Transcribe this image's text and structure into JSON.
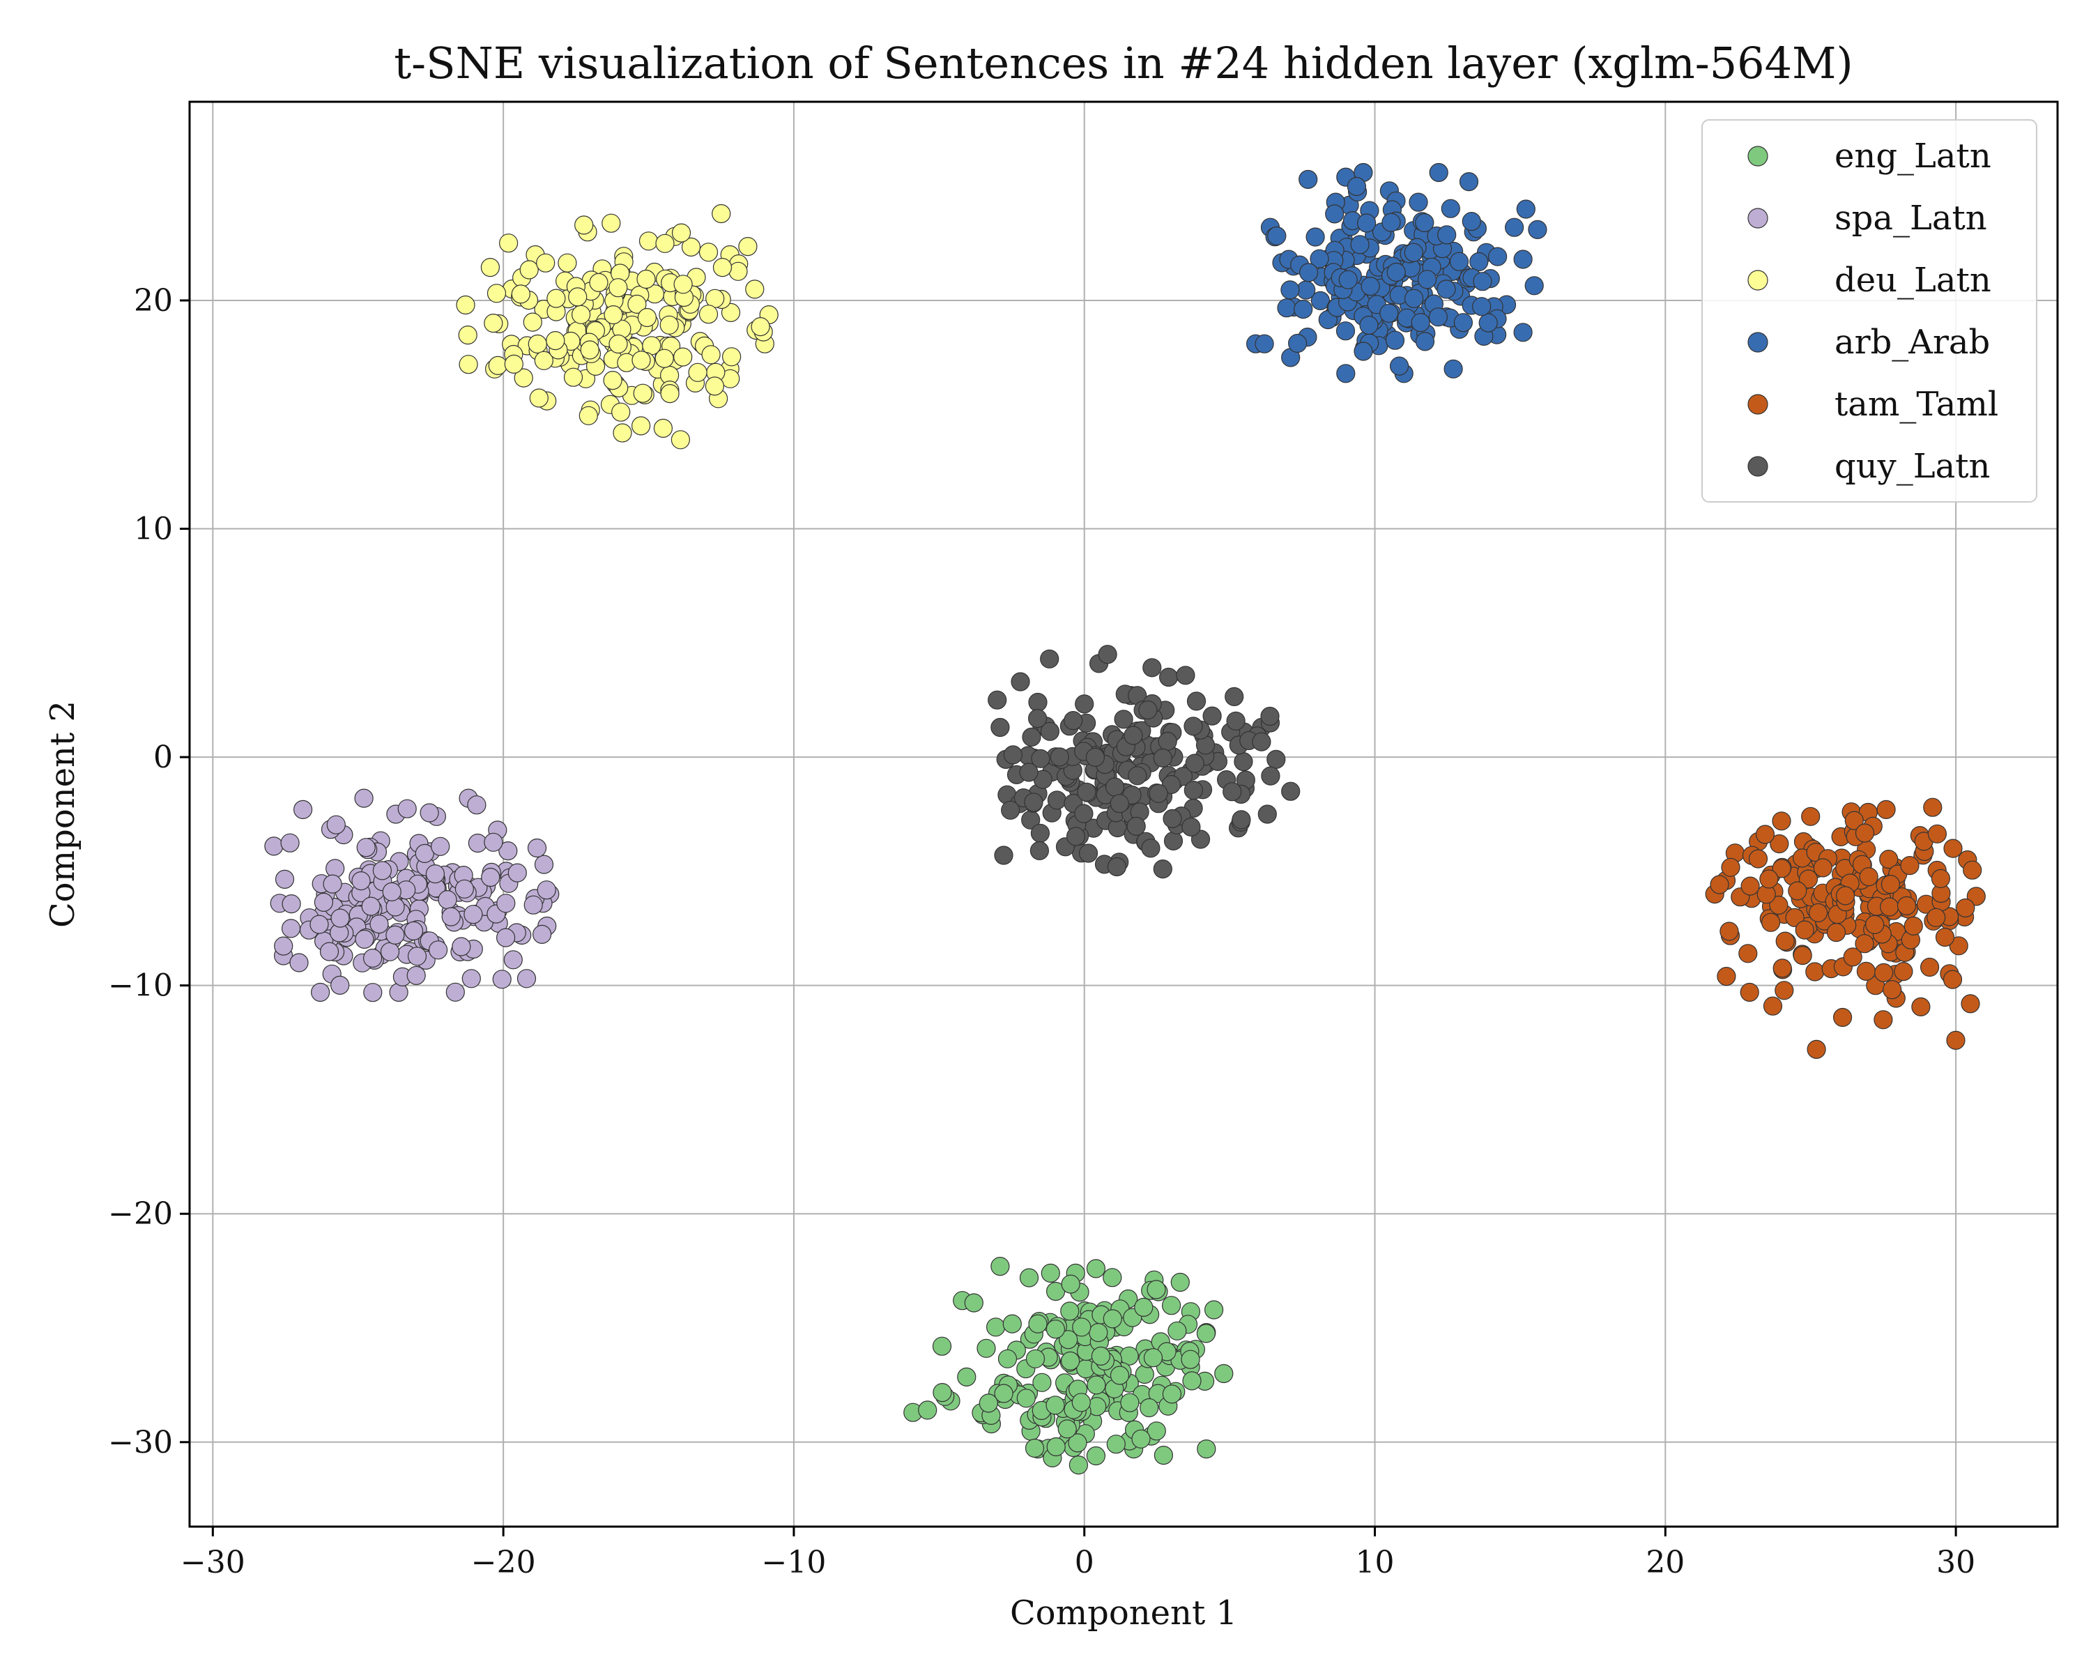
{
  "chart_data": {
    "type": "scatter",
    "title": "t-SNE visualization of Sentences in #24 hidden layer (xglm-564M)",
    "xlabel": "Component 1",
    "ylabel": "Component 2",
    "xlim": [
      -30.8,
      33.5
    ],
    "ylim": [
      -33.7,
      28.7
    ],
    "xticks": [
      -30,
      -20,
      -10,
      0,
      10,
      20,
      30
    ],
    "yticks": [
      -30,
      -20,
      -10,
      0,
      10,
      20
    ],
    "xtick_labels": [
      "−30",
      "−20",
      "−10",
      "0",
      "10",
      "20",
      "30"
    ],
    "ytick_labels": [
      "−30",
      "−20",
      "−10",
      "0",
      "10",
      "20"
    ],
    "grid": true,
    "legend_position": "top-right",
    "series": [
      {
        "name": "eng_Latn",
        "color": "#7fc97f",
        "center": [
          0.6,
          -26.6
        ],
        "spread": [
          2.3,
          1.9
        ],
        "count": 200,
        "bounds": [
          -5.9,
          4.8,
          -31.0,
          -22.3
        ],
        "points": [
          [
            -5.9,
            -28.7
          ],
          [
            -5.4,
            -28.6
          ],
          [
            -4.6,
            -28.2
          ],
          [
            -4.8,
            -28.0
          ],
          [
            -4.9,
            -25.8
          ],
          [
            -4.2,
            -23.8
          ],
          [
            -3.8,
            -23.9
          ],
          [
            -2.9,
            -22.3
          ],
          [
            -1.9,
            -22.8
          ],
          [
            -0.3,
            -22.6
          ],
          [
            0.4,
            -22.4
          ],
          [
            2.4,
            -22.9
          ],
          [
            3.3,
            -23.0
          ],
          [
            4.2,
            -25.2
          ],
          [
            4.2,
            -30.3
          ],
          [
            1.7,
            -30.3
          ],
          [
            0.4,
            -30.6
          ],
          [
            -0.2,
            -31.0
          ],
          [
            -1.6,
            -30.3
          ],
          [
            -3.2,
            -29.2
          ],
          [
            4.8,
            -27.0
          ],
          [
            -3.5,
            -28.8
          ]
        ]
      },
      {
        "name": "spa_Latn",
        "color": "#beaed4",
        "center": [
          -23.3,
          -6.5
        ],
        "spread": [
          2.6,
          1.9
        ],
        "count": 200,
        "bounds": [
          -27.9,
          -18.4,
          -10.4,
          -1.8
        ],
        "points": [
          [
            -27.9,
            -3.9
          ],
          [
            -27.7,
            -6.4
          ],
          [
            -26.9,
            -2.3
          ],
          [
            -26.3,
            -10.3
          ],
          [
            -25.9,
            -9.5
          ],
          [
            -25.5,
            -3.4
          ],
          [
            -24.8,
            -1.8
          ],
          [
            -23.7,
            -2.5
          ],
          [
            -21.2,
            -1.8
          ],
          [
            -20.2,
            -3.2
          ],
          [
            -19.9,
            -5.0
          ],
          [
            -19.2,
            -9.7
          ],
          [
            -18.6,
            -4.7
          ],
          [
            -18.4,
            -6.0
          ],
          [
            -18.5,
            -7.4
          ],
          [
            -21.1,
            -9.7
          ],
          [
            -23.6,
            -10.3
          ],
          [
            -25.5,
            -8.7
          ]
        ]
      },
      {
        "name": "deu_Latn",
        "color": "#fdfd96",
        "center": [
          -15.8,
          18.8
        ],
        "spread": [
          2.6,
          2.0
        ],
        "count": 200,
        "bounds": [
          -21.3,
          -10.8,
          13.9,
          23.8
        ],
        "points": [
          [
            -21.3,
            19.8
          ],
          [
            -21.2,
            17.2
          ],
          [
            -20.3,
            17.0
          ],
          [
            -19.7,
            20.5
          ],
          [
            -18.9,
            22.0
          ],
          [
            -17.1,
            23.0
          ],
          [
            -15.0,
            22.6
          ],
          [
            -14.1,
            22.8
          ],
          [
            -12.5,
            23.8
          ],
          [
            -12.2,
            22.0
          ],
          [
            -11.9,
            21.6
          ],
          [
            -11.0,
            18.1
          ],
          [
            -11.3,
            18.7
          ],
          [
            -12.2,
            17.0
          ],
          [
            -12.6,
            15.7
          ],
          [
            -14.5,
            14.4
          ],
          [
            -15.9,
            14.2
          ],
          [
            -17.0,
            15.2
          ],
          [
            -18.5,
            15.6
          ],
          [
            -13.9,
            13.9
          ]
        ]
      },
      {
        "name": "arb_Arab",
        "color": "#386cb0",
        "center": [
          10.4,
          20.9
        ],
        "spread": [
          2.3,
          1.9
        ],
        "count": 200,
        "bounds": [
          5.9,
          15.6,
          16.8,
          25.7
        ],
        "points": [
          [
            5.9,
            18.1
          ],
          [
            6.2,
            18.1
          ],
          [
            6.4,
            23.2
          ],
          [
            7.2,
            21.5
          ],
          [
            7.7,
            25.3
          ],
          [
            9.0,
            25.4
          ],
          [
            9.6,
            25.6
          ],
          [
            10.5,
            24.8
          ],
          [
            11.5,
            24.3
          ],
          [
            12.2,
            25.6
          ],
          [
            13.4,
            23.0
          ],
          [
            14.8,
            23.2
          ],
          [
            15.2,
            24.0
          ],
          [
            15.6,
            23.1
          ],
          [
            15.1,
            21.8
          ],
          [
            15.1,
            18.6
          ],
          [
            14.2,
            18.5
          ],
          [
            12.7,
            17.0
          ],
          [
            11.0,
            16.8
          ],
          [
            9.0,
            16.8
          ],
          [
            7.1,
            17.5
          ]
        ]
      },
      {
        "name": "tam_Taml",
        "color": "#c35a1a",
        "center": [
          26.4,
          -6.4
        ],
        "spread": [
          2.2,
          1.9
        ],
        "count": 200,
        "bounds": [
          21.7,
          30.7,
          -12.8,
          -2.2
        ],
        "points": [
          [
            21.7,
            -6.0
          ],
          [
            22.1,
            -9.6
          ],
          [
            22.4,
            -4.2
          ],
          [
            23.2,
            -3.7
          ],
          [
            24.0,
            -2.8
          ],
          [
            25.0,
            -2.6
          ],
          [
            26.4,
            -2.4
          ],
          [
            27.6,
            -2.3
          ],
          [
            29.2,
            -2.2
          ],
          [
            29.9,
            -4.0
          ],
          [
            30.4,
            -4.5
          ],
          [
            30.7,
            -6.1
          ],
          [
            30.3,
            -7.0
          ],
          [
            30.5,
            -10.8
          ],
          [
            29.1,
            -9.2
          ],
          [
            27.5,
            -11.5
          ],
          [
            26.1,
            -11.4
          ],
          [
            25.2,
            -12.8
          ],
          [
            23.7,
            -10.9
          ],
          [
            22.9,
            -10.3
          ]
        ]
      },
      {
        "name": "quy_Latn",
        "color": "#5a5a5a",
        "center": [
          1.3,
          -0.6
        ],
        "spread": [
          2.6,
          1.9
        ],
        "count": 200,
        "bounds": [
          -3.0,
          7.1,
          -4.9,
          4.5
        ],
        "points": [
          [
            -3.0,
            2.5
          ],
          [
            -2.9,
            1.3
          ],
          [
            -2.7,
            -0.1
          ],
          [
            -2.2,
            3.3
          ],
          [
            -1.6,
            2.4
          ],
          [
            -1.2,
            4.3
          ],
          [
            0.5,
            4.1
          ],
          [
            0.8,
            4.5
          ],
          [
            1.6,
            2.7
          ],
          [
            2.9,
            3.5
          ],
          [
            4.4,
            1.8
          ],
          [
            5.5,
            1.1
          ],
          [
            6.1,
            1.3
          ],
          [
            6.4,
            1.5
          ],
          [
            6.6,
            -0.1
          ],
          [
            7.1,
            -1.5
          ],
          [
            6.3,
            -2.5
          ],
          [
            5.3,
            -3.1
          ],
          [
            4.0,
            -3.6
          ],
          [
            2.7,
            -4.9
          ],
          [
            1.2,
            -4.6
          ],
          [
            -0.1,
            -4.2
          ],
          [
            -1.6,
            -1.6
          ]
        ]
      }
    ]
  }
}
